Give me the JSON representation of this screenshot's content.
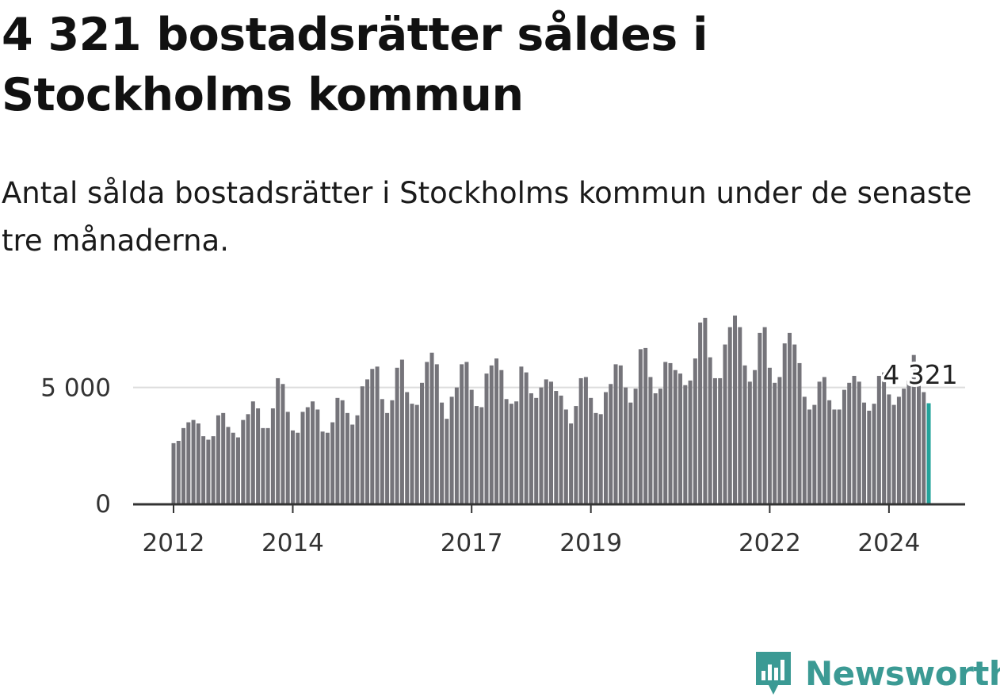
{
  "title": "4 321 bostadsrätter såldes i Stockholms kommun",
  "subtitle": "Antal sålda bostadsrätter i Stockholms kommun under de senaste tre månaderna.",
  "brand": {
    "name": "Newsworthy",
    "color": "#3b9a94"
  },
  "colors": {
    "bar": "#75747a",
    "highlight": "#23a39b",
    "grid": "#dddddd",
    "axis": "#333333"
  },
  "chart_data": {
    "type": "bar",
    "start": "2012-01",
    "ylim": [
      0,
      8200
    ],
    "yticks": [
      {
        "value": 0,
        "label": "0"
      },
      {
        "value": 5000,
        "label": "5 000"
      }
    ],
    "xticks": [
      {
        "index": 0,
        "label": "2012"
      },
      {
        "index": 24,
        "label": "2014"
      },
      {
        "index": 60,
        "label": "2017"
      },
      {
        "index": 84,
        "label": "2019"
      },
      {
        "index": 120,
        "label": "2022"
      },
      {
        "index": 144,
        "label": "2024"
      }
    ],
    "annotation": {
      "index": 150,
      "label": "4 321"
    },
    "values": [
      2600,
      2700,
      3250,
      3500,
      3600,
      3450,
      2900,
      2750,
      2900,
      3800,
      3900,
      3300,
      3050,
      2850,
      3600,
      3850,
      4400,
      4100,
      3250,
      3250,
      4100,
      5400,
      5150,
      3950,
      3150,
      3050,
      3950,
      4150,
      4400,
      4050,
      3100,
      3050,
      3500,
      4550,
      4450,
      3900,
      3400,
      3800,
      5050,
      5350,
      5800,
      5900,
      4500,
      3900,
      4450,
      5850,
      6200,
      4800,
      4300,
      4250,
      5200,
      6100,
      6500,
      6000,
      4350,
      3650,
      4600,
      5000,
      6000,
      6100,
      4900,
      4200,
      4150,
      5600,
      5950,
      6250,
      5750,
      4500,
      4300,
      4400,
      5900,
      5650,
      4750,
      4550,
      5000,
      5350,
      5250,
      4850,
      4650,
      4050,
      3450,
      4200,
      5400,
      5450,
      4550,
      3900,
      3850,
      4800,
      5150,
      6000,
      5950,
      5000,
      4350,
      4950,
      6650,
      6700,
      5450,
      4750,
      4950,
      6100,
      6050,
      5750,
      5600,
      5100,
      5300,
      6250,
      7800,
      8000,
      6300,
      5400,
      5400,
      6850,
      7600,
      8100,
      7600,
      5950,
      5250,
      5750,
      7350,
      7600,
      5850,
      5200,
      5450,
      6900,
      7350,
      6850,
      6050,
      4600,
      4050,
      4250,
      5250,
      5450,
      4450,
      4050,
      4050,
      4900,
      5200,
      5500,
      5250,
      4350,
      4000,
      4300,
      5500,
      5650,
      4700,
      4250,
      4600,
      4950,
      5300,
      6400,
      5350,
      4800,
      4321
    ]
  }
}
